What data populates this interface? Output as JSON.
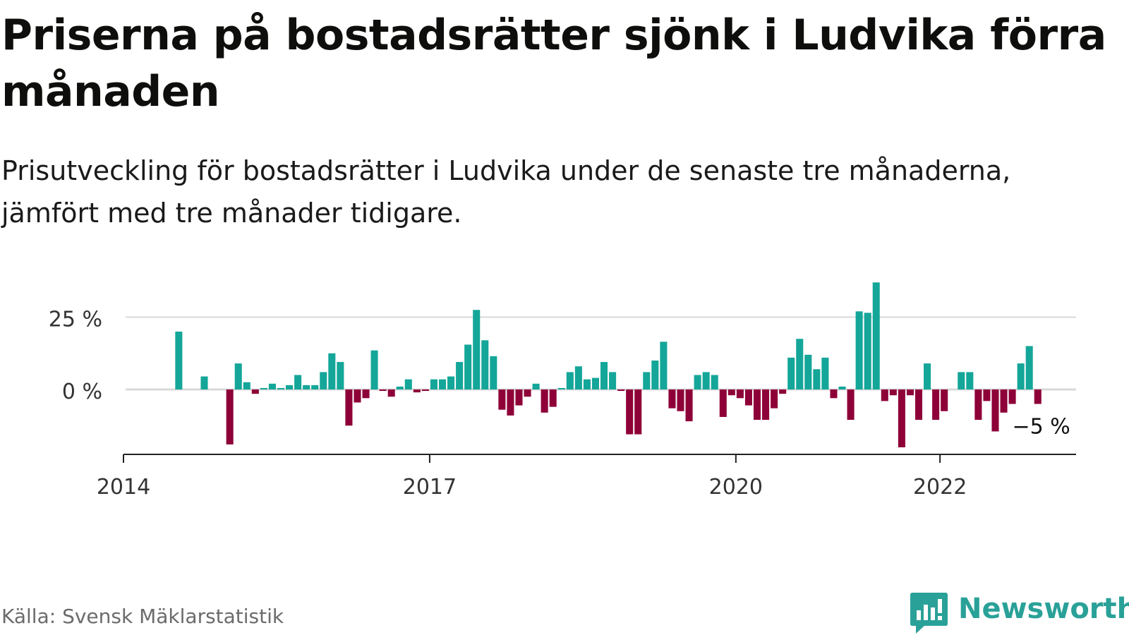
{
  "title": "Priserna på bostadsrätter sjönk i Ludvika förra månaden",
  "subtitle": "Prisutveckling för bostadsrätter i Ludvika under de senaste tre månaderna, jämfört med tre månader tidigare.",
  "source": "Källa: Svensk Mäklarstatistik",
  "brand": "Newsworthy",
  "colors": {
    "positive": "#14a699",
    "negative": "#8e0038",
    "gridline": "#d9d9d9",
    "axis": "#222222",
    "brand": "#2aa198"
  },
  "chart_data": {
    "type": "bar",
    "x_start": "2014-01",
    "x_end": "2023-05",
    "y_tick_values": [
      0,
      25
    ],
    "y_tick_labels": [
      "0 %",
      "25 %"
    ],
    "x_tick_dates": [
      "2014-01",
      "2017-01",
      "2020-01",
      "2022-01"
    ],
    "x_tick_labels": [
      "2014",
      "2017",
      "2020",
      "2022"
    ],
    "ylim": [
      -22,
      40
    ],
    "grid": true,
    "last_label": "−5 %",
    "series": [
      {
        "start": "2014-01",
        "values": [
          null,
          null,
          null,
          null,
          null,
          null,
          20,
          null,
          null,
          4.5,
          null,
          null,
          -19,
          9,
          2.5,
          -1.5,
          0.5,
          2,
          0.5,
          1.5,
          5,
          1.5,
          1.5,
          6,
          12.5,
          9.5,
          -12.5,
          -4.5,
          -3,
          13.5,
          -0.5,
          -2.5,
          1,
          3.5,
          -1,
          -0.5,
          3.5,
          3.5,
          4.5,
          9.5,
          15.5,
          27.5,
          17,
          11.5,
          -7,
          -9,
          -5.5,
          -2.5,
          2,
          -8,
          -6,
          0.5,
          6,
          8,
          3.5,
          4,
          9.5,
          6,
          -0.5,
          -15.5,
          -15.5,
          6,
          10,
          16.5,
          -6.5,
          -7.5,
          -11,
          5,
          6,
          5,
          -9.5,
          -2,
          -3,
          -5.5,
          -10.5,
          -10.5,
          -6.5,
          -1.5,
          11,
          17.5,
          12,
          7,
          11,
          -3,
          1,
          -10.5,
          27,
          26.5,
          37,
          -4,
          -2,
          -20,
          -2,
          -10.5,
          9,
          -10.5,
          -7.5,
          null,
          6,
          6,
          -10.5,
          -4,
          -14.5,
          -8,
          -5,
          9,
          15,
          -5
        ]
      }
    ]
  }
}
